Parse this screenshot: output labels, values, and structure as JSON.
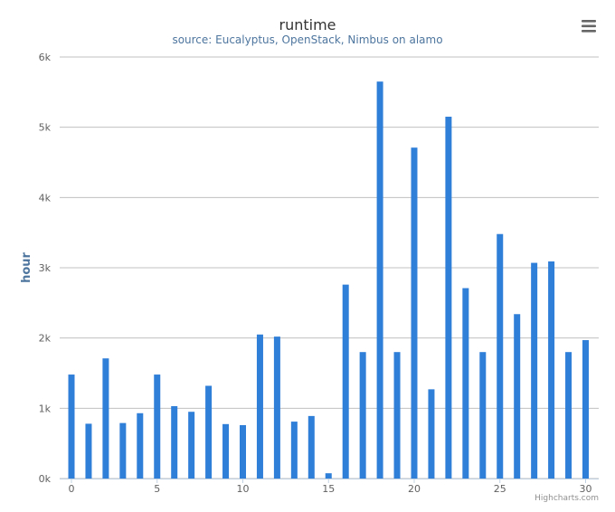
{
  "chart_data": {
    "type": "bar",
    "title": "runtime",
    "subtitle": "source: Eucalyptus, OpenStack, Nimbus on alamo",
    "xlabel": "",
    "ylabel": "hour",
    "x": [
      0,
      1,
      2,
      3,
      4,
      5,
      6,
      7,
      8,
      9,
      10,
      11,
      12,
      13,
      14,
      15,
      16,
      17,
      18,
      19,
      20,
      21,
      22,
      23,
      24,
      25,
      26,
      27,
      28,
      29,
      30
    ],
    "values": [
      1480,
      780,
      1710,
      790,
      930,
      1480,
      1030,
      950,
      1320,
      775,
      760,
      2050,
      2020,
      810,
      890,
      75,
      2760,
      1800,
      5650,
      1800,
      4710,
      1270,
      5150,
      2710,
      1800,
      3480,
      2340,
      3070,
      3090,
      1800,
      1970
    ],
    "ylim": [
      0,
      6000
    ],
    "yticks": [
      0,
      1000,
      2000,
      3000,
      4000,
      5000,
      6000
    ],
    "ytick_labels": [
      "0k",
      "1k",
      "2k",
      "3k",
      "4k",
      "5k",
      "6k"
    ],
    "xticks": [
      0,
      5,
      10,
      15,
      20,
      25,
      30
    ],
    "color": "#2f7ed8",
    "grid": true,
    "legend": "none"
  },
  "credits": "Highcharts.com",
  "menu_icon": "hamburger-menu-icon"
}
